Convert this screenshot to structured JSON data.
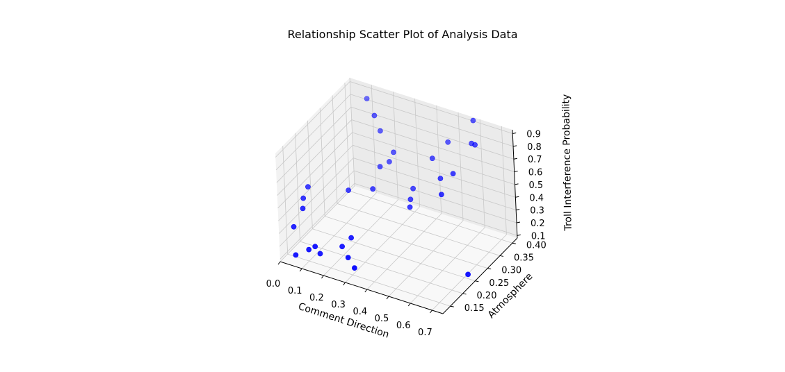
{
  "chart_data": {
    "type": "scatter",
    "projection": "3d",
    "title": "Relationship Scatter Plot of Analysis Data",
    "xlabel": "Comment Direction",
    "ylabel": "Atmosphere",
    "zlabel": "Troll Interference Probability",
    "xlim": [
      0.0,
      0.75
    ],
    "ylim": [
      0.12,
      0.42
    ],
    "zlim": [
      0.08,
      0.93
    ],
    "xticks": [
      "0.0",
      "0.1",
      "0.2",
      "0.3",
      "0.4",
      "0.5",
      "0.6",
      "0.7"
    ],
    "yticks": [
      "0.15",
      "0.20",
      "0.25",
      "0.30",
      "0.35",
      "0.40"
    ],
    "zticks": [
      "0.1",
      "0.2",
      "0.3",
      "0.4",
      "0.5",
      "0.6",
      "0.7",
      "0.8",
      "0.9"
    ],
    "grid": true,
    "marker_color": "#0000ff",
    "pane_colors": {
      "x": "#f2f2f2",
      "y": "#ebebeb",
      "z": "#f8f8f8"
    },
    "grid_color": "#c8c8c8",
    "points": [
      {
        "x": 0.05,
        "y": 0.14,
        "z": 0.12
      },
      {
        "x": 0.1,
        "y": 0.15,
        "z": 0.17
      },
      {
        "x": 0.13,
        "y": 0.15,
        "z": 0.21
      },
      {
        "x": 0.14,
        "y": 0.16,
        "z": 0.14
      },
      {
        "x": 0.01,
        "y": 0.17,
        "z": 0.26
      },
      {
        "x": 0.02,
        "y": 0.2,
        "z": 0.35
      },
      {
        "x": 0.0,
        "y": 0.22,
        "z": 0.38
      },
      {
        "x": 0.0,
        "y": 0.24,
        "z": 0.43
      },
      {
        "x": 0.22,
        "y": 0.18,
        "z": 0.2
      },
      {
        "x": 0.24,
        "y": 0.2,
        "z": 0.24
      },
      {
        "x": 0.27,
        "y": 0.16,
        "z": 0.18
      },
      {
        "x": 0.31,
        "y": 0.15,
        "z": 0.14
      },
      {
        "x": 0.14,
        "y": 0.28,
        "z": 0.4
      },
      {
        "x": 0.23,
        "y": 0.3,
        "z": 0.42
      },
      {
        "x": 0.22,
        "y": 0.34,
        "z": 0.51
      },
      {
        "x": 0.24,
        "y": 0.36,
        "z": 0.52
      },
      {
        "x": 0.25,
        "y": 0.37,
        "z": 0.58
      },
      {
        "x": 0.18,
        "y": 0.38,
        "z": 0.69
      },
      {
        "x": 0.1,
        "y": 0.4,
        "z": 0.86
      },
      {
        "x": 0.18,
        "y": 0.36,
        "z": 0.85
      },
      {
        "x": 0.38,
        "y": 0.32,
        "z": 0.38
      },
      {
        "x": 0.37,
        "y": 0.34,
        "z": 0.42
      },
      {
        "x": 0.4,
        "y": 0.3,
        "z": 0.37
      },
      {
        "x": 0.55,
        "y": 0.3,
        "z": 0.55
      },
      {
        "x": 0.5,
        "y": 0.34,
        "z": 0.57
      },
      {
        "x": 0.43,
        "y": 0.37,
        "z": 0.63
      },
      {
        "x": 0.56,
        "y": 0.34,
        "z": 0.64
      },
      {
        "x": 0.47,
        "y": 0.4,
        "z": 0.72
      },
      {
        "x": 0.58,
        "y": 0.4,
        "z": 0.77
      },
      {
        "x": 0.62,
        "y": 0.38,
        "z": 0.82
      },
      {
        "x": 0.58,
        "y": 0.41,
        "z": 0.93
      },
      {
        "x": 0.73,
        "y": 0.24,
        "z": 0.14
      }
    ]
  }
}
